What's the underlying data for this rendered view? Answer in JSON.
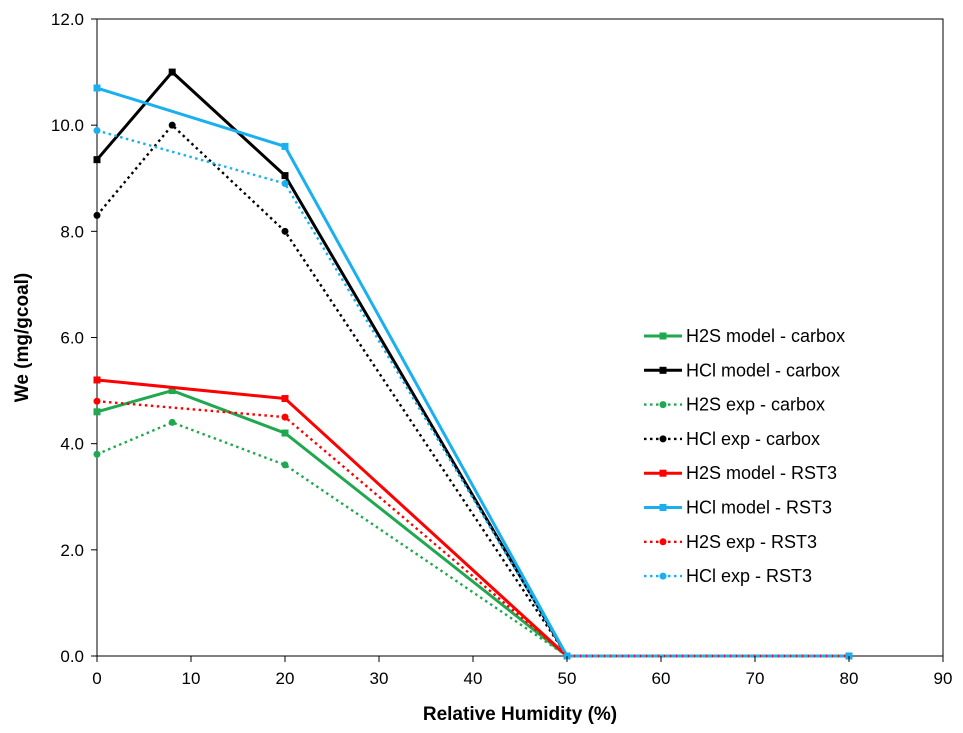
{
  "chart_data": {
    "type": "line",
    "title": "",
    "xlabel": "Relative Humidity (%)",
    "ylabel": "We (mg/gcoal)",
    "xlim": [
      0,
      90
    ],
    "ylim": [
      0,
      12
    ],
    "xticks": [
      0,
      10,
      20,
      30,
      40,
      50,
      60,
      70,
      80,
      90
    ],
    "yticks": [
      "0.0",
      "2.0",
      "4.0",
      "6.0",
      "8.0",
      "10.0",
      "12.0"
    ],
    "grid": false,
    "legend_position": "right",
    "series": [
      {
        "name": "H2S model - carbox",
        "color": "#1fa84f",
        "dash": "solid",
        "marker": "square",
        "x": [
          0,
          8,
          20,
          50,
          80
        ],
        "y": [
          4.6,
          5.0,
          4.2,
          0.0,
          0.0
        ]
      },
      {
        "name": "HCl model - carbox",
        "color": "#000000",
        "dash": "solid",
        "marker": "square",
        "x": [
          0,
          8,
          20,
          50,
          80
        ],
        "y": [
          9.35,
          11.0,
          9.05,
          0.0,
          0.0
        ]
      },
      {
        "name": "H2S exp - carbox",
        "color": "#1fa84f",
        "dash": "dotted",
        "marker": "circle",
        "x": [
          0,
          8,
          20,
          50,
          80
        ],
        "y": [
          3.8,
          4.4,
          3.6,
          0.0,
          0.0
        ]
      },
      {
        "name": "HCl exp - carbox",
        "color": "#000000",
        "dash": "dotted",
        "marker": "circle",
        "x": [
          0,
          8,
          20,
          50,
          80
        ],
        "y": [
          8.3,
          10.0,
          8.0,
          0.0,
          0.0
        ]
      },
      {
        "name": "H2S model - RST3",
        "color": "#ff0000",
        "dash": "solid",
        "marker": "square",
        "x": [
          0,
          20,
          50,
          80
        ],
        "y": [
          5.2,
          4.85,
          0.0,
          0.0
        ]
      },
      {
        "name": "HCl model - RST3",
        "color": "#1ab0f0",
        "dash": "solid",
        "marker": "square",
        "x": [
          0,
          20,
          50,
          80
        ],
        "y": [
          10.7,
          9.6,
          0.0,
          0.0
        ]
      },
      {
        "name": "H2S exp - RST3",
        "color": "#ff0000",
        "dash": "dotted",
        "marker": "circle",
        "x": [
          0,
          20,
          50,
          80
        ],
        "y": [
          4.8,
          4.5,
          0.0,
          0.0
        ]
      },
      {
        "name": "HCl exp - RST3",
        "color": "#1ab0f0",
        "dash": "dotted",
        "marker": "circle",
        "x": [
          0,
          20,
          50,
          80
        ],
        "y": [
          9.9,
          8.9,
          0.0,
          0.0
        ]
      }
    ]
  }
}
